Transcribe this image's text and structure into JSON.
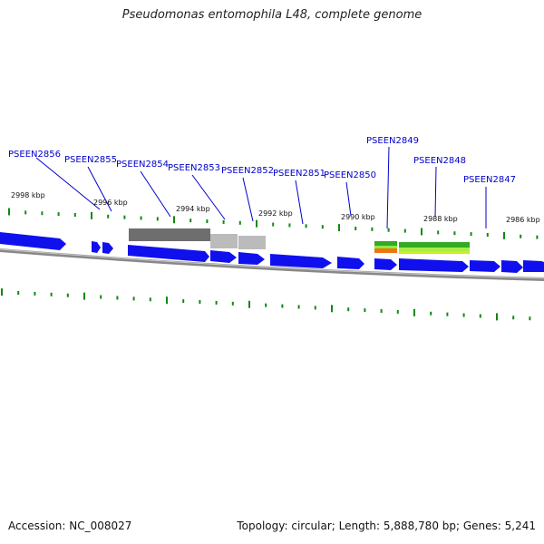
{
  "title": "Pseudomonas entomophila L48, complete genome",
  "footer": {
    "accession": "Accession: NC_008027",
    "stats": "Topology: circular; Length: 5,888,780 bp; Genes: 5,241"
  },
  "colors": {
    "forward_gene": "#1010ee",
    "backbone": "#888888",
    "tick": "#118811",
    "label": "#0000cc",
    "rrna_orange": "#ee7711",
    "rrna_green": "#33aa22",
    "rrna_light": "#88ee44",
    "dark_grey_feature": "#555555",
    "light_grey_feature": "#bbbbbb"
  },
  "gene_labels": [
    "PSEEN2856",
    "PSEEN2855",
    "PSEEN2854",
    "PSEEN2853",
    "PSEEN2852",
    "PSEEN2851",
    "PSEEN2850",
    "PSEEN2849",
    "PSEEN2848",
    "PSEEN2847"
  ],
  "kbp_labels": [
    "2998 kbp",
    "2996 kbp",
    "2994 kbp",
    "2992 kbp",
    "2990 kbp",
    "2988 kbp",
    "2986 kbp"
  ]
}
